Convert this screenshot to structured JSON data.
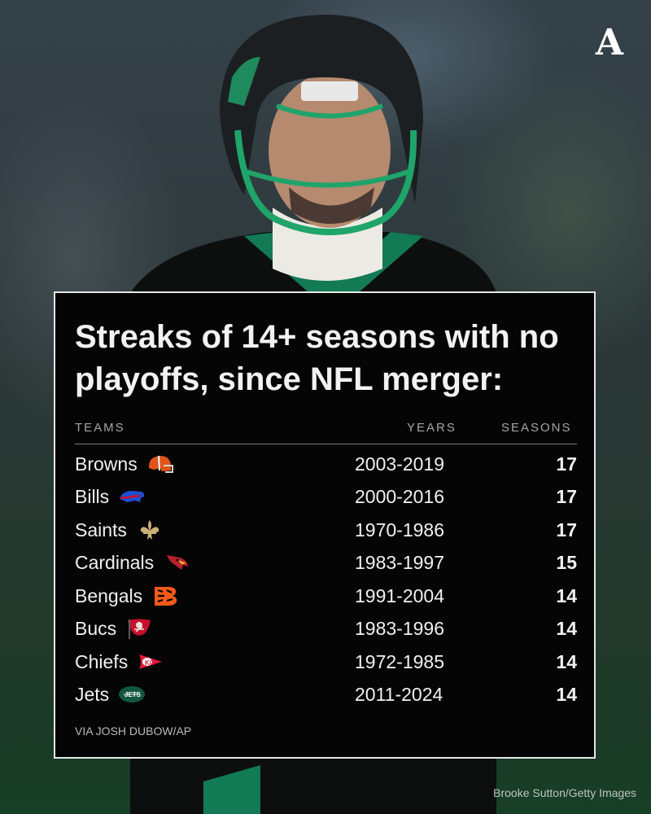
{
  "brand_logo_text": "A",
  "photo_credit": "Brooke Sutton/Getty Images",
  "card": {
    "title": "Streaks of 14+ seasons with no playoffs, since NFL merger:",
    "headers": {
      "teams": "TEAMS",
      "years": "YEARS",
      "seasons": "SEASONS"
    },
    "rows": [
      {
        "team": "Browns",
        "icon": "browns-helmet-icon",
        "years": "2003-2019",
        "seasons": "17"
      },
      {
        "team": "Bills",
        "icon": "bills-buffalo-icon",
        "years": "2000-2016",
        "seasons": "17"
      },
      {
        "team": "Saints",
        "icon": "saints-fleur-de-lis-icon",
        "years": "1970-1986",
        "seasons": "17"
      },
      {
        "team": "Cardinals",
        "icon": "cardinals-bird-icon",
        "years": "1983-1997",
        "seasons": "15"
      },
      {
        "team": "Bengals",
        "icon": "bengals-b-icon",
        "years": "1991-2004",
        "seasons": "14"
      },
      {
        "team": "Bucs",
        "icon": "bucs-flag-icon",
        "years": "1983-1996",
        "seasons": "14"
      },
      {
        "team": "Chiefs",
        "icon": "chiefs-arrowhead-icon",
        "years": "1972-1985",
        "seasons": "14"
      },
      {
        "team": "Jets",
        "icon": "jets-oval-icon",
        "years": "2011-2024",
        "seasons": "14"
      }
    ],
    "source": "VIA JOSH DUBOW/AP"
  },
  "colors": {
    "card_bg": "#050505",
    "card_border": "#e6e6e6",
    "text": "#f0f0f0",
    "header_text": "#a5a5a5",
    "jets_green": "#125740",
    "browns_orange": "#e3531c",
    "bills_blue": "#1f4fd1",
    "saints_gold": "#c9b074",
    "cardinals_red": "#b8202f",
    "bengals_orange": "#f05a1a",
    "bucs_red": "#c8102e",
    "chiefs_red": "#e31837"
  }
}
